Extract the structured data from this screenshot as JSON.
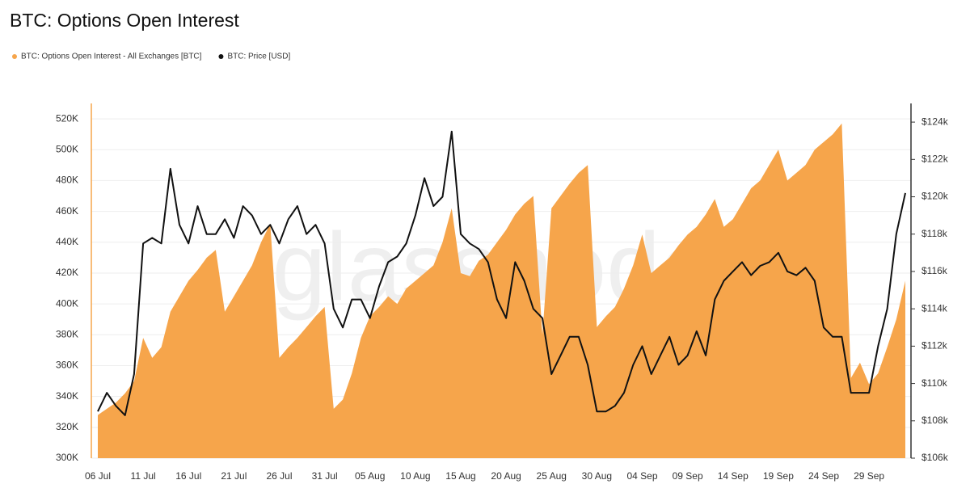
{
  "chart_data": {
    "type": "area-line",
    "title": "BTC: Options Open Interest",
    "watermark": "glassnode",
    "x": [
      "06 Jul",
      "07 Jul",
      "08 Jul",
      "09 Jul",
      "10 Jul",
      "11 Jul",
      "12 Jul",
      "13 Jul",
      "14 Jul",
      "15 Jul",
      "16 Jul",
      "17 Jul",
      "18 Jul",
      "19 Jul",
      "20 Jul",
      "21 Jul",
      "22 Jul",
      "23 Jul",
      "24 Jul",
      "25 Jul",
      "26 Jul",
      "27 Jul",
      "28 Jul",
      "29 Jul",
      "30 Jul",
      "31 Jul",
      "01 Aug",
      "02 Aug",
      "03 Aug",
      "04 Aug",
      "05 Aug",
      "06 Aug",
      "07 Aug",
      "08 Aug",
      "09 Aug",
      "10 Aug",
      "11 Aug",
      "12 Aug",
      "13 Aug",
      "14 Aug",
      "15 Aug",
      "16 Aug",
      "17 Aug",
      "18 Aug",
      "19 Aug",
      "20 Aug",
      "21 Aug",
      "22 Aug",
      "23 Aug",
      "24 Aug",
      "25 Aug",
      "26 Aug",
      "27 Aug",
      "28 Aug",
      "29 Aug",
      "30 Aug",
      "31 Aug",
      "01 Sep",
      "02 Sep",
      "03 Sep",
      "04 Sep",
      "05 Sep",
      "06 Sep",
      "07 Sep",
      "08 Sep",
      "09 Sep",
      "10 Sep",
      "11 Sep",
      "12 Sep",
      "13 Sep",
      "14 Sep",
      "15 Sep",
      "16 Sep",
      "17 Sep",
      "18 Sep",
      "19 Sep",
      "20 Sep",
      "21 Sep",
      "22 Sep",
      "23 Sep",
      "24 Sep",
      "25 Sep",
      "26 Sep",
      "27 Sep",
      "28 Sep",
      "29 Sep",
      "30 Sep",
      "01 Oct",
      "02 Oct",
      "03 Oct"
    ],
    "xticks": [
      "06 Jul",
      "11 Jul",
      "16 Jul",
      "21 Jul",
      "26 Jul",
      "31 Jul",
      "05 Aug",
      "10 Aug",
      "15 Aug",
      "20 Aug",
      "25 Aug",
      "30 Aug",
      "04 Sep",
      "09 Sep",
      "14 Sep",
      "19 Sep",
      "24 Sep",
      "29 Sep"
    ],
    "series": [
      {
        "name": "BTC: Options Open Interest - All Exchanges [BTC]",
        "color": "#f6a54b",
        "axis": "y",
        "values": [
          328000,
          332000,
          336000,
          342000,
          350000,
          378000,
          365000,
          372000,
          395000,
          405000,
          415000,
          422000,
          430000,
          435000,
          395000,
          405000,
          415000,
          425000,
          440000,
          452000,
          365000,
          372000,
          378000,
          385000,
          392000,
          398000,
          332000,
          338000,
          355000,
          378000,
          392000,
          398000,
          405000,
          400000,
          410000,
          415000,
          420000,
          425000,
          440000,
          462000,
          420000,
          418000,
          428000,
          432000,
          440000,
          448000,
          458000,
          465000,
          470000,
          380000,
          462000,
          470000,
          478000,
          485000,
          490000,
          385000,
          392000,
          398000,
          410000,
          425000,
          445000,
          420000,
          425000,
          430000,
          438000,
          445000,
          450000,
          458000,
          468000,
          450000,
          455000,
          465000,
          475000,
          480000,
          490000,
          500000,
          480000,
          485000,
          490000,
          500000,
          505000,
          510000,
          517000,
          352000,
          362000,
          348000,
          355000,
          372000,
          390000,
          415000
        ]
      },
      {
        "name": "BTC: Price [USD]",
        "color": "#111111",
        "axis": "y2",
        "values": [
          108500,
          109500,
          108800,
          108300,
          110500,
          117500,
          117800,
          117500,
          121500,
          118500,
          117500,
          119500,
          118000,
          118000,
          118800,
          117800,
          119500,
          119000,
          118000,
          118500,
          117500,
          118800,
          119500,
          118000,
          118500,
          117500,
          114000,
          113000,
          114500,
          114500,
          113500,
          115200,
          116500,
          116800,
          117500,
          119000,
          121000,
          119500,
          120000,
          123500,
          118000,
          117500,
          117200,
          116500,
          114500,
          113500,
          116500,
          115500,
          114000,
          113500,
          110500,
          111500,
          112500,
          112500,
          111000,
          108500,
          108500,
          108800,
          109500,
          111000,
          112000,
          110500,
          111500,
          112500,
          111000,
          111500,
          112800,
          111500,
          114500,
          115500,
          116000,
          116500,
          115800,
          116300,
          116500,
          117000,
          116000,
          115800,
          116200,
          115500,
          113000,
          112500,
          112500,
          109500,
          109500,
          109500,
          112000,
          114000,
          118000,
          120200
        ]
      }
    ],
    "ylim": [
      300000,
      530000
    ],
    "yticks": [
      {
        "value": 300000,
        "label": "300K"
      },
      {
        "value": 320000,
        "label": "320K"
      },
      {
        "value": 340000,
        "label": "340K"
      },
      {
        "value": 360000,
        "label": "360K"
      },
      {
        "value": 380000,
        "label": "380K"
      },
      {
        "value": 400000,
        "label": "400K"
      },
      {
        "value": 420000,
        "label": "420K"
      },
      {
        "value": 440000,
        "label": "440K"
      },
      {
        "value": 460000,
        "label": "460K"
      },
      {
        "value": 480000,
        "label": "480K"
      },
      {
        "value": 500000,
        "label": "500K"
      },
      {
        "value": 520000,
        "label": "520K"
      }
    ],
    "y2lim": [
      106000,
      125000
    ],
    "y2ticks": [
      {
        "value": 106000,
        "label": "$106k"
      },
      {
        "value": 108000,
        "label": "$108k"
      },
      {
        "value": 110000,
        "label": "$110k"
      },
      {
        "value": 112000,
        "label": "$112k"
      },
      {
        "value": 114000,
        "label": "$114k"
      },
      {
        "value": 116000,
        "label": "$116k"
      },
      {
        "value": 118000,
        "label": "$118k"
      },
      {
        "value": 120000,
        "label": "$120k"
      },
      {
        "value": 122000,
        "label": "$122k"
      },
      {
        "value": 124000,
        "label": "$124k"
      }
    ],
    "grid": true,
    "legend": "top-left"
  }
}
